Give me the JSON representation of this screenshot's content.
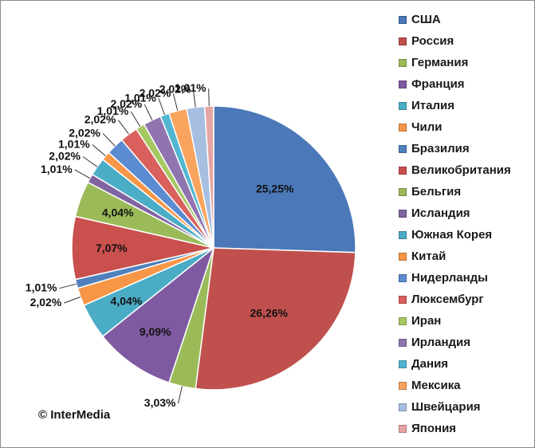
{
  "chart_data": {
    "type": "pie",
    "categories": [
      "США",
      "Россия",
      "Германия",
      "Франция",
      "Италия",
      "Чили",
      "Бразилия",
      "Великобритания",
      "Бельгия",
      "Исландия",
      "Южная Корея",
      "Китай",
      "Нидерланды",
      "Люксембург",
      "Иран",
      "Ирландия",
      "Дания",
      "Мексика",
      "Швейцария",
      "Япония"
    ],
    "values": [
      25.25,
      26.26,
      3.03,
      9.09,
      4.04,
      2.02,
      1.01,
      7.07,
      4.04,
      1.01,
      2.02,
      1.01,
      2.02,
      2.02,
      1.01,
      2.02,
      1.01,
      2.02,
      2.02,
      1.01
    ],
    "labels": [
      "25,25%",
      "26,26%",
      "3,03%",
      "9,09%",
      "4,04%",
      "2,02%",
      "1,01%",
      "7,07%",
      "4,04%",
      "1,01%",
      "2,02%",
      "1,01%",
      "2,02%",
      "2,02%",
      "1,01%",
      "2,02%",
      "1,01%",
      "2,02%",
      "2,02%",
      "1,01%"
    ],
    "colors": [
      "#4a78b8",
      "#c0504d",
      "#9bbb59",
      "#7f5aa0",
      "#4bacc6",
      "#f79646",
      "#4f81bd",
      "#c9504d",
      "#9bbb59",
      "#8064a2",
      "#4bacc6",
      "#f79646",
      "#5b8bd0",
      "#d9605d",
      "#a5c862",
      "#8f74b0",
      "#52b6d0",
      "#f9a45e",
      "#a6bfe0",
      "#e6a5a4"
    ],
    "legend_position": "right",
    "title": ""
  },
  "legend": {
    "items": [
      "США",
      "Россия",
      "Германия",
      "Франция",
      "Италия",
      "Чили",
      "Бразилия",
      "Великобритания",
      "Бельгия",
      "Исландия",
      "Южная Корея",
      "Китай",
      "Нидерланды",
      "Люксембург",
      "Иран",
      "Ирландия",
      "Дания",
      "Мексика",
      "Швейцария",
      "Япония"
    ]
  },
  "footer": {
    "copyright": "© InterMedia"
  }
}
